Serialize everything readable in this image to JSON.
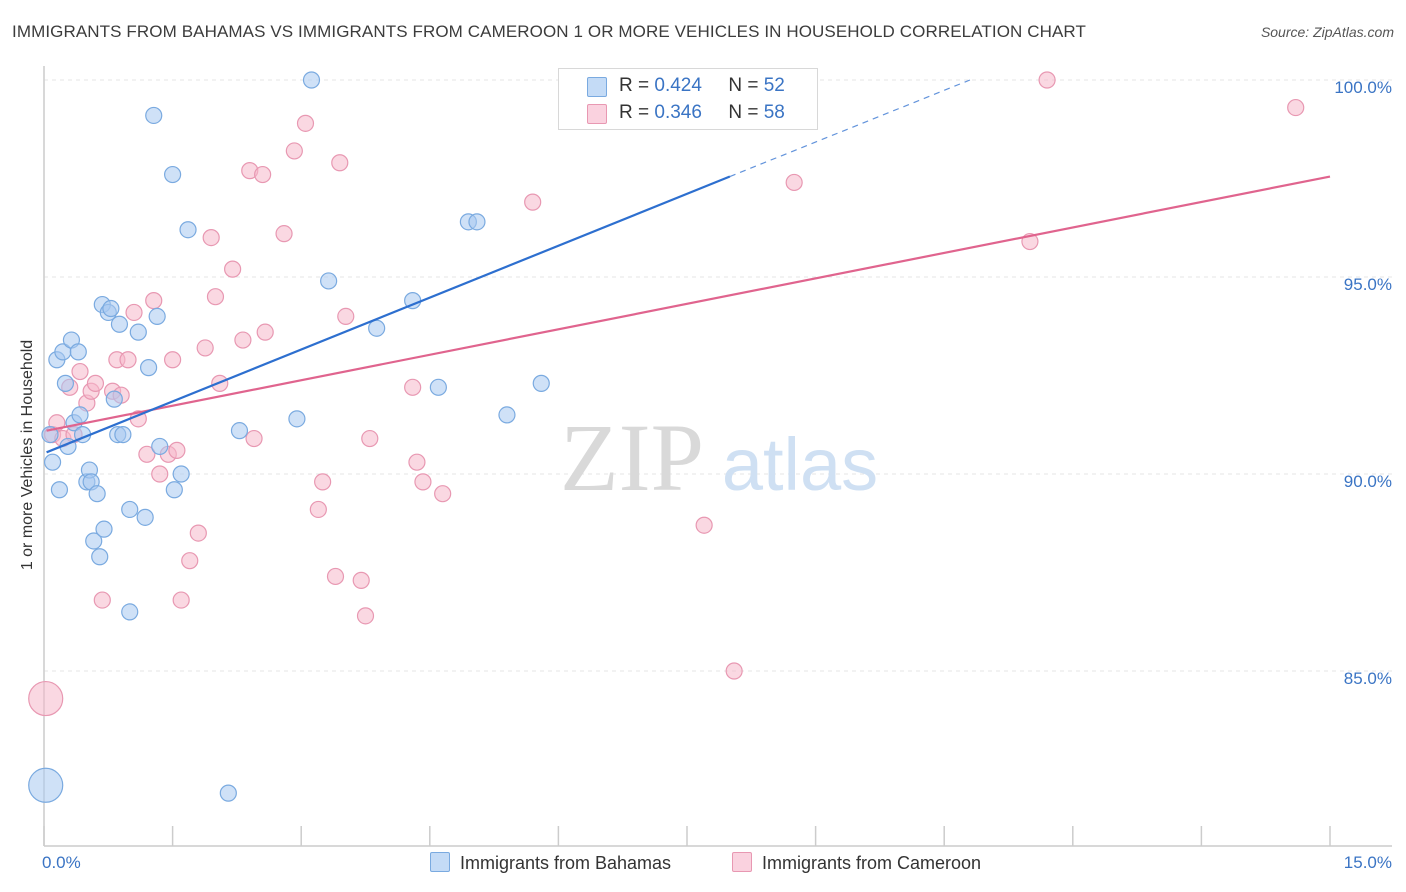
{
  "title": "IMMIGRANTS FROM BAHAMAS VS IMMIGRANTS FROM CAMEROON 1 OR MORE VEHICLES IN HOUSEHOLD CORRELATION CHART",
  "source": "Source: ZipAtlas.com",
  "watermark": {
    "zip": "ZIP",
    "atlas": "atlas"
  },
  "legend_top": {
    "rows": [
      {
        "r_label": "R =",
        "r_value": "0.424",
        "n_label": "N =",
        "n_value": "52",
        "color": "#a8c8f0"
      },
      {
        "r_label": "R =",
        "r_value": "0.346",
        "n_label": "N =",
        "n_value": "58",
        "color": "#f5b8cb"
      }
    ]
  },
  "legend_bottom": {
    "items": [
      {
        "label": "Immigrants from Bahamas",
        "color": "#a8c8f0"
      },
      {
        "label": "Immigrants from Cameroon",
        "color": "#f5b8cb"
      }
    ]
  },
  "colors": {
    "blue_fill": "#a8c8f0",
    "blue_stroke": "#7aaae0",
    "blue_line": "#2d6fcf",
    "pink_fill": "#f5b8cb",
    "pink_stroke": "#e898b2",
    "pink_line": "#e0648e",
    "tick_text": "#3a74c4",
    "grid": "#e6e6e6"
  },
  "chart_data": {
    "type": "scatter",
    "title": "IMMIGRANTS FROM BAHAMAS VS IMMIGRANTS FROM CAMEROON 1 OR MORE VEHICLES IN HOUSEHOLD CORRELATION CHART",
    "xlabel": "",
    "ylabel": "1 or more Vehicles in Household",
    "xlim": [
      0,
      15
    ],
    "ylim": [
      80.5,
      100.5
    ],
    "x_tick_labels": [
      "0.0%",
      "15.0%"
    ],
    "y_ticks": [
      85,
      90,
      95,
      100
    ],
    "y_tick_labels": [
      "85.0%",
      "90.0%",
      "95.0%",
      "100.0%"
    ],
    "grid": true,
    "legend_placement": "bottom",
    "series": [
      {
        "name": "Immigrants from Bahamas",
        "r": 0.424,
        "n": 52,
        "trend": {
          "x0": 0.03,
          "y0": 90.55,
          "x1": 8.0,
          "y1": 97.55,
          "dash_to_x": 10.8,
          "dash_to_y": 100.0
        },
        "points": [
          {
            "x": 0.02,
            "y": 82.1,
            "s": "L"
          },
          {
            "x": 0.07,
            "y": 91.0
          },
          {
            "x": 0.1,
            "y": 90.3
          },
          {
            "x": 0.15,
            "y": 92.9
          },
          {
            "x": 0.18,
            "y": 89.6
          },
          {
            "x": 0.22,
            "y": 93.1
          },
          {
            "x": 0.25,
            "y": 92.3
          },
          {
            "x": 0.28,
            "y": 90.7
          },
          {
            "x": 0.32,
            "y": 93.4
          },
          {
            "x": 0.35,
            "y": 91.3
          },
          {
            "x": 0.4,
            "y": 93.1
          },
          {
            "x": 0.42,
            "y": 91.5
          },
          {
            "x": 0.45,
            "y": 91.0
          },
          {
            "x": 0.5,
            "y": 89.8
          },
          {
            "x": 0.53,
            "y": 90.1
          },
          {
            "x": 0.55,
            "y": 89.8
          },
          {
            "x": 0.58,
            "y": 88.3
          },
          {
            "x": 0.62,
            "y": 89.5
          },
          {
            "x": 0.65,
            "y": 87.9
          },
          {
            "x": 0.68,
            "y": 94.3
          },
          {
            "x": 0.7,
            "y": 88.6
          },
          {
            "x": 0.75,
            "y": 94.1
          },
          {
            "x": 0.78,
            "y": 94.2
          },
          {
            "x": 0.82,
            "y": 91.9
          },
          {
            "x": 0.86,
            "y": 91.0
          },
          {
            "x": 0.88,
            "y": 93.8
          },
          {
            "x": 0.92,
            "y": 91.0
          },
          {
            "x": 1.0,
            "y": 89.1
          },
          {
            "x": 1.0,
            "y": 86.5
          },
          {
            "x": 1.1,
            "y": 93.6
          },
          {
            "x": 1.18,
            "y": 88.9
          },
          {
            "x": 1.22,
            "y": 92.7
          },
          {
            "x": 1.28,
            "y": 99.1
          },
          {
            "x": 1.32,
            "y": 94.0
          },
          {
            "x": 1.35,
            "y": 90.7
          },
          {
            "x": 1.5,
            "y": 97.6
          },
          {
            "x": 1.52,
            "y": 89.6
          },
          {
            "x": 1.6,
            "y": 90.0
          },
          {
            "x": 1.68,
            "y": 96.2
          },
          {
            "x": 2.15,
            "y": 81.9
          },
          {
            "x": 2.28,
            "y": 91.1
          },
          {
            "x": 2.95,
            "y": 91.4
          },
          {
            "x": 3.12,
            "y": 100.0
          },
          {
            "x": 3.32,
            "y": 94.9
          },
          {
            "x": 3.88,
            "y": 93.7
          },
          {
            "x": 4.3,
            "y": 94.4
          },
          {
            "x": 4.6,
            "y": 92.2
          },
          {
            "x": 4.95,
            "y": 96.4
          },
          {
            "x": 5.05,
            "y": 96.4
          },
          {
            "x": 5.4,
            "y": 91.5
          },
          {
            "x": 5.8,
            "y": 92.3
          },
          {
            "x": 7.1,
            "y": 100.0
          }
        ]
      },
      {
        "name": "Immigrants from Cameroon",
        "r": 0.346,
        "n": 58,
        "trend": {
          "x0": 0.03,
          "y0": 91.1,
          "x1": 15.0,
          "y1": 97.55
        },
        "points": [
          {
            "x": 0.02,
            "y": 84.3,
            "s": "L"
          },
          {
            "x": 0.1,
            "y": 91.0
          },
          {
            "x": 0.15,
            "y": 91.3
          },
          {
            "x": 0.22,
            "y": 90.9
          },
          {
            "x": 0.3,
            "y": 92.2
          },
          {
            "x": 0.35,
            "y": 91.0
          },
          {
            "x": 0.42,
            "y": 92.6
          },
          {
            "x": 0.5,
            "y": 91.8
          },
          {
            "x": 0.55,
            "y": 92.1
          },
          {
            "x": 0.6,
            "y": 92.3
          },
          {
            "x": 0.68,
            "y": 86.8
          },
          {
            "x": 0.8,
            "y": 92.1
          },
          {
            "x": 0.85,
            "y": 92.9
          },
          {
            "x": 0.9,
            "y": 92.0
          },
          {
            "x": 0.98,
            "y": 92.9
          },
          {
            "x": 1.05,
            "y": 94.1
          },
          {
            "x": 1.1,
            "y": 91.4
          },
          {
            "x": 1.2,
            "y": 90.5
          },
          {
            "x": 1.28,
            "y": 94.4
          },
          {
            "x": 1.35,
            "y": 90.0
          },
          {
            "x": 1.45,
            "y": 90.5
          },
          {
            "x": 1.5,
            "y": 92.9
          },
          {
            "x": 1.55,
            "y": 90.6
          },
          {
            "x": 1.6,
            "y": 86.8
          },
          {
            "x": 1.7,
            "y": 87.8
          },
          {
            "x": 1.8,
            "y": 88.5
          },
          {
            "x": 1.88,
            "y": 93.2
          },
          {
            "x": 1.95,
            "y": 96.0
          },
          {
            "x": 2.0,
            "y": 94.5
          },
          {
            "x": 2.05,
            "y": 92.3
          },
          {
            "x": 2.2,
            "y": 95.2
          },
          {
            "x": 2.32,
            "y": 93.4
          },
          {
            "x": 2.4,
            "y": 97.7
          },
          {
            "x": 2.45,
            "y": 90.9
          },
          {
            "x": 2.55,
            "y": 97.6
          },
          {
            "x": 2.58,
            "y": 93.6
          },
          {
            "x": 2.8,
            "y": 96.1
          },
          {
            "x": 2.92,
            "y": 98.2
          },
          {
            "x": 3.05,
            "y": 98.9
          },
          {
            "x": 3.2,
            "y": 89.1
          },
          {
            "x": 3.25,
            "y": 89.8
          },
          {
            "x": 3.4,
            "y": 87.4
          },
          {
            "x": 3.45,
            "y": 97.9
          },
          {
            "x": 3.52,
            "y": 94.0
          },
          {
            "x": 3.7,
            "y": 87.3
          },
          {
            "x": 3.75,
            "y": 86.4
          },
          {
            "x": 3.8,
            "y": 90.9
          },
          {
            "x": 4.3,
            "y": 92.2
          },
          {
            "x": 4.35,
            "y": 90.3
          },
          {
            "x": 4.42,
            "y": 89.8
          },
          {
            "x": 4.65,
            "y": 89.5
          },
          {
            "x": 5.7,
            "y": 96.9
          },
          {
            "x": 7.7,
            "y": 88.7
          },
          {
            "x": 8.05,
            "y": 85.0
          },
          {
            "x": 8.75,
            "y": 97.4
          },
          {
            "x": 11.5,
            "y": 95.9
          },
          {
            "x": 11.7,
            "y": 100.0
          },
          {
            "x": 14.6,
            "y": 99.3
          }
        ]
      }
    ]
  }
}
